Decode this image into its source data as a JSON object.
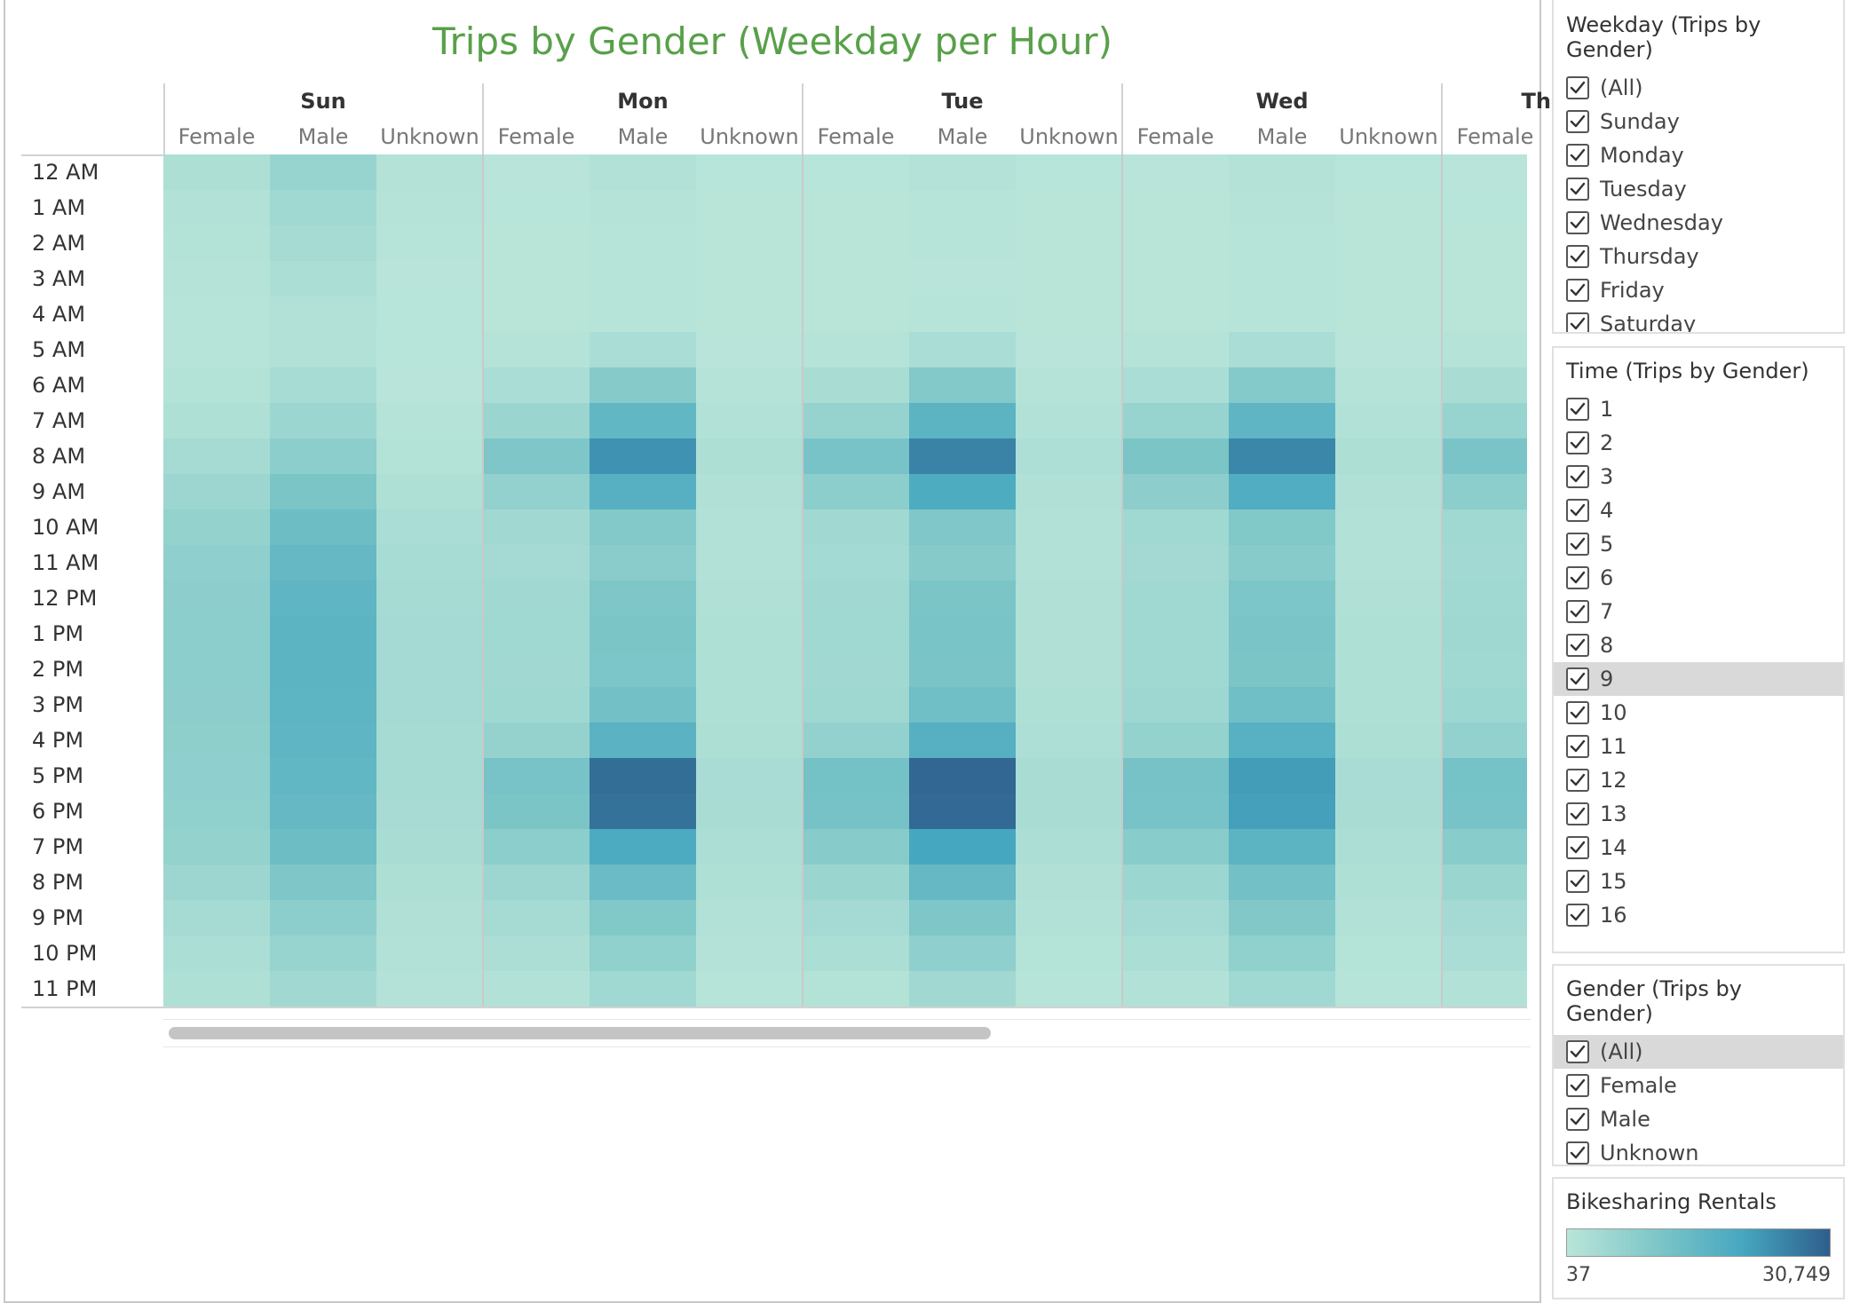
{
  "title": "Trips by Gender (Weekday per Hour)",
  "days": [
    "Sun",
    "Mon",
    "Tue",
    "Wed",
    "Thu"
  ],
  "genders": [
    "Female",
    "Male",
    "Unknown"
  ],
  "hours": [
    "12 AM",
    "1 AM",
    "2 AM",
    "3 AM",
    "4 AM",
    "5 AM",
    "6 AM",
    "7 AM",
    "8 AM",
    "9 AM",
    "10 AM",
    "11 AM",
    "12 PM",
    "1 PM",
    "2 PM",
    "3 PM",
    "4 PM",
    "5 PM",
    "6 PM",
    "7 PM",
    "8 PM",
    "9 PM",
    "10 PM",
    "11 PM"
  ],
  "filters": {
    "weekday": {
      "title": "Weekday (Trips by Gender)",
      "options": [
        "(All)",
        "Sunday",
        "Monday",
        "Tuesday",
        "Wednesday",
        "Thursday",
        "Friday",
        "Saturday"
      ]
    },
    "time": {
      "title": "Time (Trips by Gender)",
      "options": [
        "1",
        "2",
        "3",
        "4",
        "5",
        "6",
        "7",
        "8",
        "9",
        "10",
        "11",
        "12",
        "13",
        "14",
        "15",
        "16"
      ],
      "highlighted": "9"
    },
    "gender": {
      "title": "Gender (Trips by Gender)",
      "options": [
        "(All)",
        "Female",
        "Male",
        "Unknown"
      ],
      "highlighted": "(All)"
    }
  },
  "legend": {
    "title": "Bikesharing Rentals",
    "min_label": "37",
    "max_label": "30,749",
    "colors": [
      "#b9e5d9",
      "#7fc7c8",
      "#46a7c0",
      "#2e5e8c"
    ]
  },
  "chart_data": {
    "type": "heatmap",
    "title": "Trips by Gender (Weekday per Hour)",
    "x_groups": [
      "Sun",
      "Mon",
      "Tue",
      "Wed",
      "Thu"
    ],
    "x_subgroups": [
      "Female",
      "Male",
      "Unknown"
    ],
    "y": [
      "12 AM",
      "1 AM",
      "2 AM",
      "3 AM",
      "4 AM",
      "5 AM",
      "6 AM",
      "7 AM",
      "8 AM",
      "9 AM",
      "10 AM",
      "11 AM",
      "12 PM",
      "1 PM",
      "2 PM",
      "3 PM",
      "4 PM",
      "5 PM",
      "6 PM",
      "7 PM",
      "8 PM",
      "9 PM",
      "10 PM",
      "11 PM"
    ],
    "color_range": [
      37,
      30749
    ],
    "series": [
      {
        "day": "Sun",
        "gender": "Female",
        "values": [
          2200,
          1500,
          1100,
          800,
          500,
          400,
          1100,
          1800,
          3500,
          5000,
          6500,
          7500,
          7800,
          8000,
          7900,
          7800,
          7700,
          7500,
          7200,
          6500,
          5000,
          3500,
          2500,
          1800
        ]
      },
      {
        "day": "Sun",
        "gender": "Male",
        "values": [
          6000,
          4500,
          3500,
          2500,
          1500,
          1200,
          3200,
          5200,
          8000,
          11000,
          13500,
          15000,
          16000,
          16500,
          16500,
          16300,
          16000,
          15500,
          15000,
          13500,
          10500,
          8000,
          6000,
          4200
        ]
      },
      {
        "day": "Sun",
        "gender": "Unknown",
        "values": [
          1000,
          700,
          500,
          300,
          200,
          150,
          300,
          600,
          1100,
          1800,
          2600,
          3200,
          3600,
          3800,
          3800,
          3700,
          3600,
          3500,
          3300,
          2900,
          2200,
          1700,
          1300,
          900
        ]
      },
      {
        "day": "Mon",
        "gender": "Female",
        "values": [
          300,
          150,
          100,
          80,
          120,
          700,
          2600,
          5500,
          10500,
          7000,
          4200,
          3800,
          4200,
          4400,
          4300,
          4600,
          6400,
          11500,
          11000,
          8000,
          5000,
          3600,
          2400,
          1200
        ]
      },
      {
        "day": "Mon",
        "gender": "Male",
        "values": [
          1200,
          600,
          400,
          350,
          500,
          2600,
          9000,
          15500,
          23500,
          17500,
          9500,
          8500,
          10500,
          11000,
          10800,
          12500,
          17000,
          28500,
          28000,
          19500,
          14000,
          10000,
          7200,
          4500
        ]
      },
      {
        "day": "Mon",
        "gender": "Unknown",
        "values": [
          200,
          100,
          80,
          60,
          70,
          250,
          700,
          1300,
          2200,
          1700,
          1400,
          1500,
          1700,
          1800,
          1800,
          1900,
          2200,
          3000,
          2900,
          2400,
          1800,
          1300,
          900,
          500
        ]
      },
      {
        "day": "Tue",
        "gender": "Female",
        "values": [
          200,
          100,
          80,
          60,
          100,
          650,
          2800,
          6200,
          11500,
          8000,
          4300,
          3900,
          4300,
          4400,
          4300,
          4700,
          6700,
          12200,
          11800,
          8800,
          5400,
          3700,
          2500,
          1100
        ]
      },
      {
        "day": "Tue",
        "gender": "Male",
        "values": [
          900,
          500,
          350,
          300,
          450,
          2700,
          9500,
          16500,
          25500,
          19000,
          10200,
          9000,
          11000,
          11300,
          11100,
          13000,
          17500,
          29500,
          29000,
          20500,
          15000,
          10500,
          7500,
          4300
        ]
      },
      {
        "day": "Tue",
        "gender": "Unknown",
        "values": [
          150,
          80,
          60,
          50,
          60,
          230,
          650,
          1250,
          2100,
          1600,
          1300,
          1400,
          1600,
          1700,
          1700,
          1800,
          2100,
          2900,
          2800,
          2300,
          1700,
          1200,
          850,
          450
        ]
      },
      {
        "day": "Wed",
        "gender": "Female",
        "values": [
          250,
          120,
          90,
          70,
          110,
          680,
          2700,
          6000,
          11000,
          7800,
          4400,
          4000,
          4400,
          4500,
          4400,
          4800,
          6600,
          11800,
          11500,
          8600,
          5300,
          3700,
          2500,
          1200
        ]
      },
      {
        "day": "Wed",
        "gender": "Male",
        "values": [
          1000,
          550,
          380,
          320,
          480,
          2650,
          9300,
          16000,
          25000,
          18500,
          10000,
          8800,
          10800,
          11200,
          11000,
          12800,
          17200,
          22000,
          21500,
          16500,
          12500,
          9800,
          7300,
          4400
        ]
      },
      {
        "day": "Wed",
        "gender": "Unknown",
        "values": [
          170,
          90,
          70,
          55,
          65,
          240,
          680,
          1280,
          2150,
          1650,
          1350,
          1450,
          1650,
          1750,
          1750,
          1850,
          2150,
          2950,
          2850,
          2350,
          1750,
          1250,
          880,
          480
        ]
      },
      {
        "day": "Thu",
        "gender": "Female",
        "values": [
          300,
          150,
          100,
          80,
          120,
          700,
          2800,
          6100,
          11200,
          7900,
          4500,
          4100,
          4500,
          4600,
          4500,
          4900,
          6800,
          12000,
          11700,
          8700,
          5400,
          3800,
          2600,
          1300
        ]
      }
    ]
  }
}
